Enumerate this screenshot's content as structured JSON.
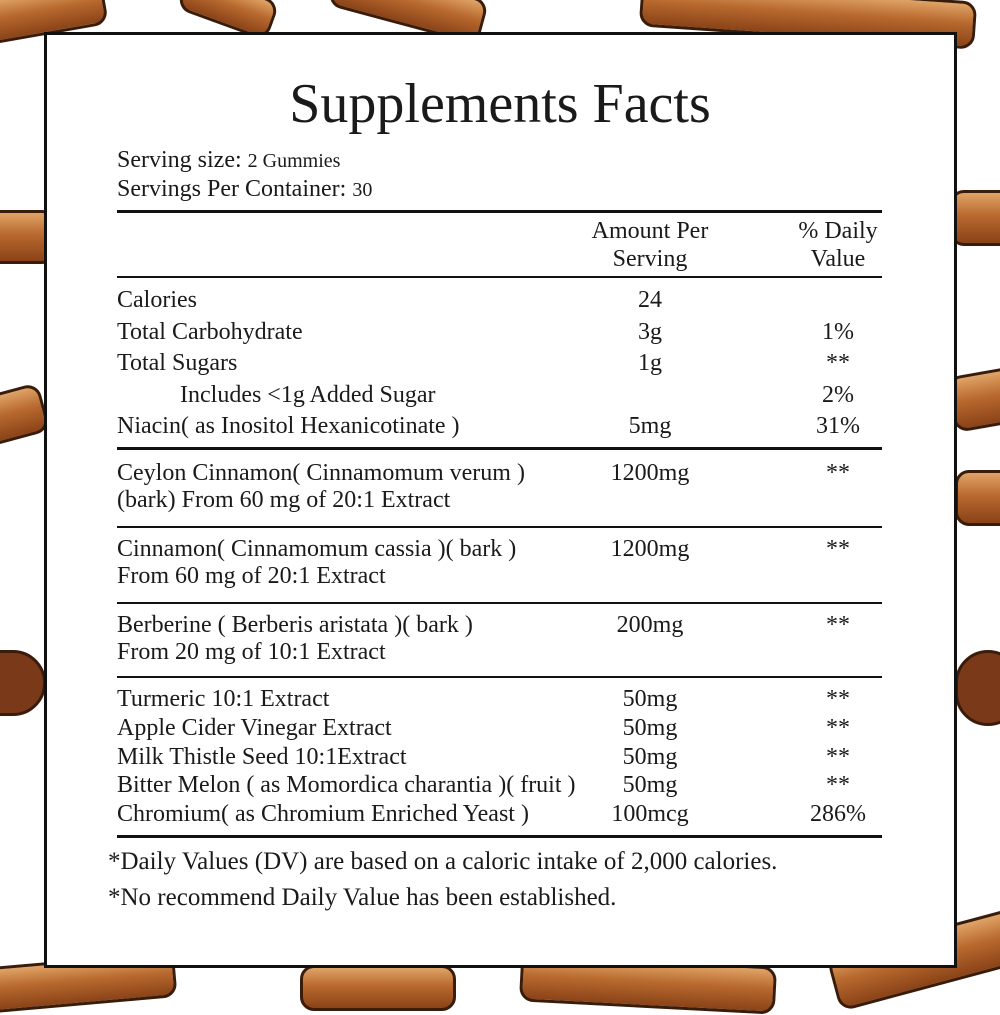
{
  "title": "Supplements Facts",
  "serving_size_label": "Serving size:",
  "serving_size_value": "2 Gummies",
  "servings_label": "Servings Per Container:",
  "servings_value": "30",
  "headers": {
    "amount": [
      "Amount Per",
      "Serving"
    ],
    "dv": [
      "% Daily",
      "Value"
    ]
  },
  "rows1": [
    {
      "name": "Calories",
      "amount": "24",
      "dv": ""
    },
    {
      "name": "Total Carbohydrate",
      "amount": "3g",
      "dv": "1%"
    },
    {
      "name": "Total Sugars",
      "amount": "1g",
      "dv": "**"
    },
    {
      "name": "Includes <1g Added Sugar",
      "amount": "",
      "dv": "2%"
    },
    {
      "name": "Niacin( as Inositol Hexanicotinate )",
      "amount": "5mg",
      "dv": "31%"
    }
  ],
  "blocks": [
    {
      "line1": "Ceylon Cinnamon( Cinnamomum verum )",
      "line2": "(bark) From 60 mg of 20:1 Extract",
      "amount": "1200mg",
      "dv": "**"
    },
    {
      "line1": "Cinnamon( Cinnamomum cassia )( bark )",
      "line2": "From 60 mg of 20:1 Extract",
      "amount": "1200mg",
      "dv": "**"
    },
    {
      "line1": "Berberine ( Berberis aristata )( bark )",
      "line2": "From 20 mg of 10:1 Extract",
      "amount": "200mg",
      "dv": "**"
    }
  ],
  "rows2": [
    {
      "name": "Turmeric 10:1 Extract",
      "amount": "50mg",
      "dv": "**"
    },
    {
      "name": "Apple Cider Vinegar Extract",
      "amount": "50mg",
      "dv": "**"
    },
    {
      "name": "Milk Thistle Seed 10:1Extract",
      "amount": "50mg",
      "dv": "**"
    },
    {
      "name": "Bitter Melon ( as Momordica charantia )( fruit )",
      "amount": "50mg",
      "dv": "**"
    },
    {
      "name": "Chromium( as Chromium Enriched Yeast )",
      "amount": "100mcg",
      "dv": "286%"
    }
  ],
  "footnotes": [
    "*Daily Values (DV) are based on a caloric intake of 2,000 calories.",
    "*No recommend Daily Value has been established."
  ],
  "colors": {
    "cinnamon": "#b8692e",
    "border": "#111111"
  }
}
